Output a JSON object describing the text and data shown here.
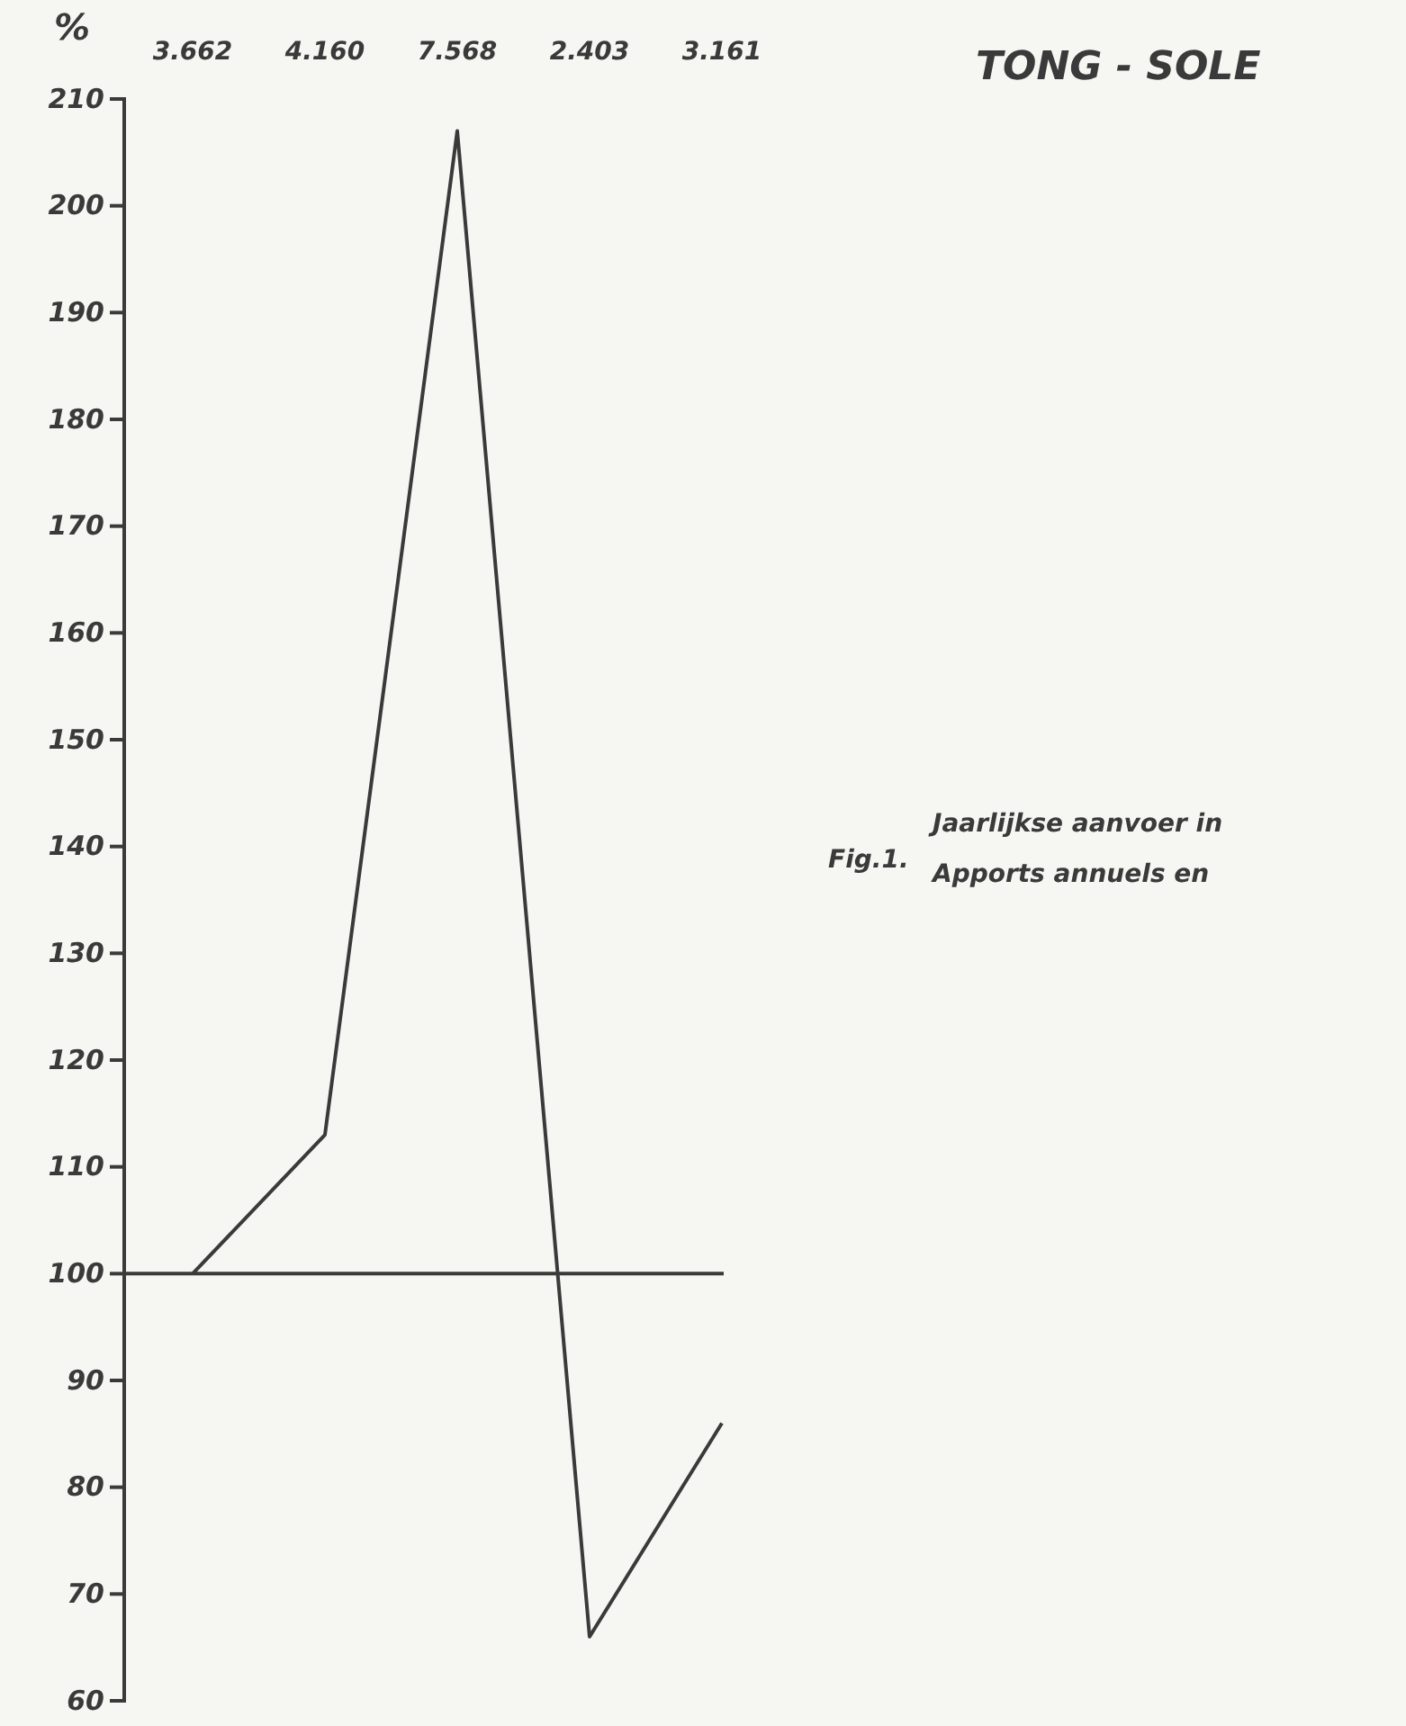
{
  "chart_data": {
    "type": "line",
    "title": "TONG - SOLE",
    "ylabel": "%",
    "categories": [
      "3.662",
      "4.160",
      "7.568",
      "2.403",
      "3.161"
    ],
    "values": [
      100,
      113,
      207,
      66,
      86
    ],
    "color": "#3a3a3a",
    "ylim": [
      60,
      210
    ],
    "yticks": [
      60,
      70,
      80,
      90,
      100,
      110,
      120,
      130,
      140,
      150,
      160,
      170,
      180,
      190,
      200,
      210
    ],
    "ref_lines": [
      {
        "axis": "y",
        "value": 100,
        "color": "#3a3a3a"
      }
    ],
    "annotations": [
      "Fig.1.",
      "Jaarlijkse aanvoer in",
      "Apports annuels en"
    ],
    "grid": false,
    "marker": "none",
    "line_style": "solid"
  }
}
